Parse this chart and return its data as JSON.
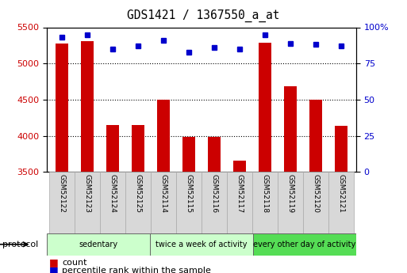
{
  "title": "GDS1421 / 1367550_a_at",
  "categories": [
    "GSM52122",
    "GSM52123",
    "GSM52124",
    "GSM52125",
    "GSM52114",
    "GSM52115",
    "GSM52116",
    "GSM52117",
    "GSM52118",
    "GSM52119",
    "GSM52120",
    "GSM52121"
  ],
  "counts": [
    5280,
    5310,
    4150,
    4150,
    4500,
    3980,
    3990,
    3660,
    5290,
    4680,
    4500,
    4140
  ],
  "percentile_ranks": [
    93,
    95,
    85,
    87,
    91,
    83,
    86,
    85,
    95,
    89,
    88,
    87
  ],
  "ylim_left": [
    3500,
    5500
  ],
  "ylim_right": [
    0,
    100
  ],
  "yticks_left": [
    3500,
    4000,
    4500,
    5000,
    5500
  ],
  "yticks_right": [
    0,
    25,
    50,
    75,
    100
  ],
  "bar_color": "#cc0000",
  "dot_color": "#0000cc",
  "groups": [
    {
      "label": "sedentary",
      "start": 0,
      "end": 4,
      "color": "#ccffcc"
    },
    {
      "label": "twice a week of activity",
      "start": 4,
      "end": 8,
      "color": "#ccffcc"
    },
    {
      "label": "every other day of activity",
      "start": 8,
      "end": 12,
      "color": "#55dd55"
    }
  ],
  "protocol_label": "protocol",
  "legend_count_label": "count",
  "legend_pct_label": "percentile rank within the sample"
}
